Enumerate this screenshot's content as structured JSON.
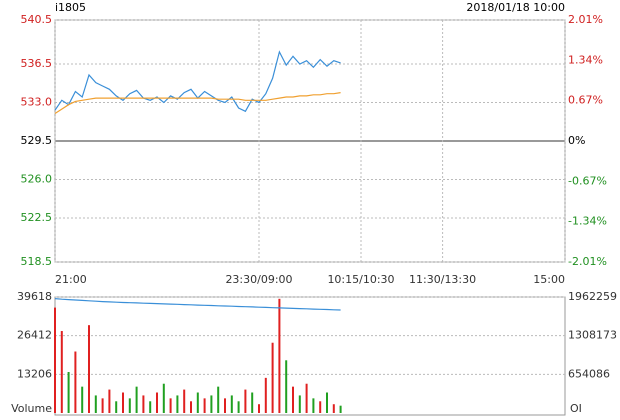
{
  "header": {
    "symbol": "i1805",
    "datetime": "2018/01/18 10:00"
  },
  "chart_data": [
    {
      "type": "line",
      "x": [
        0,
        5,
        10,
        15,
        20,
        25,
        30,
        35,
        40,
        45,
        50,
        55,
        60,
        65,
        70,
        75,
        80,
        85,
        90,
        95,
        100,
        105,
        110,
        115,
        120,
        125,
        130,
        135,
        140,
        145,
        150,
        155,
        160,
        165,
        170,
        175,
        180,
        185,
        190,
        195,
        200,
        205,
        210
      ],
      "series": [
        {
          "color": "#3a8fd8",
          "values": [
            532.3,
            533.2,
            532.8,
            534.0,
            533.5,
            535.5,
            534.8,
            534.5,
            534.2,
            533.6,
            533.2,
            533.8,
            534.1,
            533.4,
            533.2,
            533.5,
            533.0,
            533.6,
            533.3,
            533.9,
            534.2,
            533.4,
            534.0,
            533.6,
            533.2,
            533.0,
            533.5,
            532.5,
            532.2,
            533.3,
            533.0,
            533.8,
            535.2,
            537.6,
            536.4,
            537.2,
            536.5,
            536.8,
            536.2,
            536.9,
            536.3,
            536.8,
            536.6
          ]
        },
        {
          "color": "#f0a030",
          "values": [
            532.0,
            532.4,
            532.8,
            533.1,
            533.2,
            533.3,
            533.4,
            533.4,
            533.4,
            533.4,
            533.4,
            533.4,
            533.4,
            533.4,
            533.4,
            533.4,
            533.4,
            533.4,
            533.4,
            533.4,
            533.4,
            533.4,
            533.4,
            533.4,
            533.3,
            533.3,
            533.3,
            533.3,
            533.2,
            533.2,
            533.2,
            533.2,
            533.3,
            533.4,
            533.5,
            533.5,
            533.6,
            533.6,
            533.7,
            533.7,
            533.8,
            533.8,
            533.9
          ]
        }
      ],
      "xlim": [
        0,
        375
      ],
      "xticks": [
        {
          "value": 0,
          "label": "21:00"
        },
        {
          "value": 150,
          "label": "23:30/09:00"
        },
        {
          "value": 225,
          "label": "10:15/10:30"
        },
        {
          "value": 285,
          "label": "11:30/13:30"
        },
        {
          "value": 375,
          "label": "15:00"
        }
      ],
      "ylim": [
        518.5,
        540.5
      ],
      "yticks": [
        540.5,
        536.5,
        {
          "value": 533,
          "label": "533.0"
        },
        529.5,
        {
          "value": 526,
          "label": "526.0"
        },
        522.5,
        518.5
      ],
      "y2lim": [
        -2.01,
        2.01
      ],
      "y2ticks": [
        {
          "value": 2.01,
          "label": "2.01%"
        },
        {
          "value": 1.34,
          "label": "1.34%"
        },
        {
          "value": 0.67,
          "label": "0.67%"
        },
        {
          "value": 0,
          "label": "0%"
        },
        {
          "value": -0.67,
          "label": "-0.67%"
        },
        {
          "value": -1.34,
          "label": "-1.34%"
        },
        {
          "value": -2.01,
          "label": "-2.01%"
        }
      ]
    },
    {
      "type": "bar",
      "x": [
        0,
        5,
        10,
        15,
        20,
        25,
        30,
        35,
        40,
        45,
        50,
        55,
        60,
        65,
        70,
        75,
        80,
        85,
        90,
        95,
        100,
        105,
        110,
        115,
        120,
        125,
        130,
        135,
        140,
        145,
        150,
        155,
        160,
        165,
        170,
        175,
        180,
        185,
        190,
        195,
        200,
        205,
        210
      ],
      "series": [
        {
          "values": [
            36000,
            28000,
            14000,
            21000,
            9000,
            30000,
            6000,
            5000,
            8000,
            4000,
            7000,
            5000,
            9000,
            6000,
            4000,
            7000,
            10000,
            5000,
            6000,
            8000,
            4000,
            7000,
            5000,
            6000,
            9000,
            5000,
            6000,
            4000,
            8000,
            7000,
            3000,
            12000,
            24000,
            39000,
            18000,
            9000,
            6000,
            10000,
            5000,
            4000,
            7000,
            3000,
            2500
          ],
          "colors": [
            "#e02020",
            "#e02020",
            "#20a020",
            "#e02020",
            "#20a020",
            "#e02020",
            "#20a020",
            "#e02020",
            "#e02020",
            "#20a020",
            "#e02020",
            "#20a020",
            "#20a020",
            "#e02020",
            "#20a020",
            "#e02020",
            "#20a020",
            "#e02020",
            "#20a020",
            "#e02020",
            "#e02020",
            "#20a020",
            "#e02020",
            "#20a020",
            "#20a020",
            "#e02020",
            "#20a020",
            "#20a020",
            "#e02020",
            "#20a020",
            "#e02020",
            "#e02020",
            "#e02020",
            "#e02020",
            "#20a020",
            "#e02020",
            "#20a020",
            "#e02020",
            "#20a020",
            "#e02020",
            "#20a020",
            "#e02020",
            "#20a020"
          ]
        },
        {
          "axis": "y2",
          "color": "#3a8fd8",
          "values": [
            1935000,
            1925000,
            1918000,
            1912000,
            1905000,
            1898000,
            1892000,
            1885000,
            1880000,
            1875000,
            1870000,
            1866000,
            1862000,
            1858000,
            1854000,
            1850000,
            1846000,
            1842000,
            1838000,
            1834000,
            1830000,
            1826000,
            1822000,
            1818000,
            1814000,
            1810000,
            1806000,
            1802000,
            1798000,
            1794000,
            1790000,
            1786000,
            1782000,
            1778000,
            1774000,
            1770000,
            1766000,
            1762000,
            1758000,
            1754000,
            1750000,
            1746000,
            1742000
          ]
        }
      ],
      "xlim": [
        0,
        375
      ],
      "ylim": [
        0,
        39618
      ],
      "yticks": [
        39618,
        26412,
        13206
      ],
      "y2lim": [
        0,
        1962259
      ],
      "y2ticks": [
        1962259,
        1308173,
        654086
      ],
      "y_label": "Volume",
      "y2_label": "OI"
    }
  ]
}
